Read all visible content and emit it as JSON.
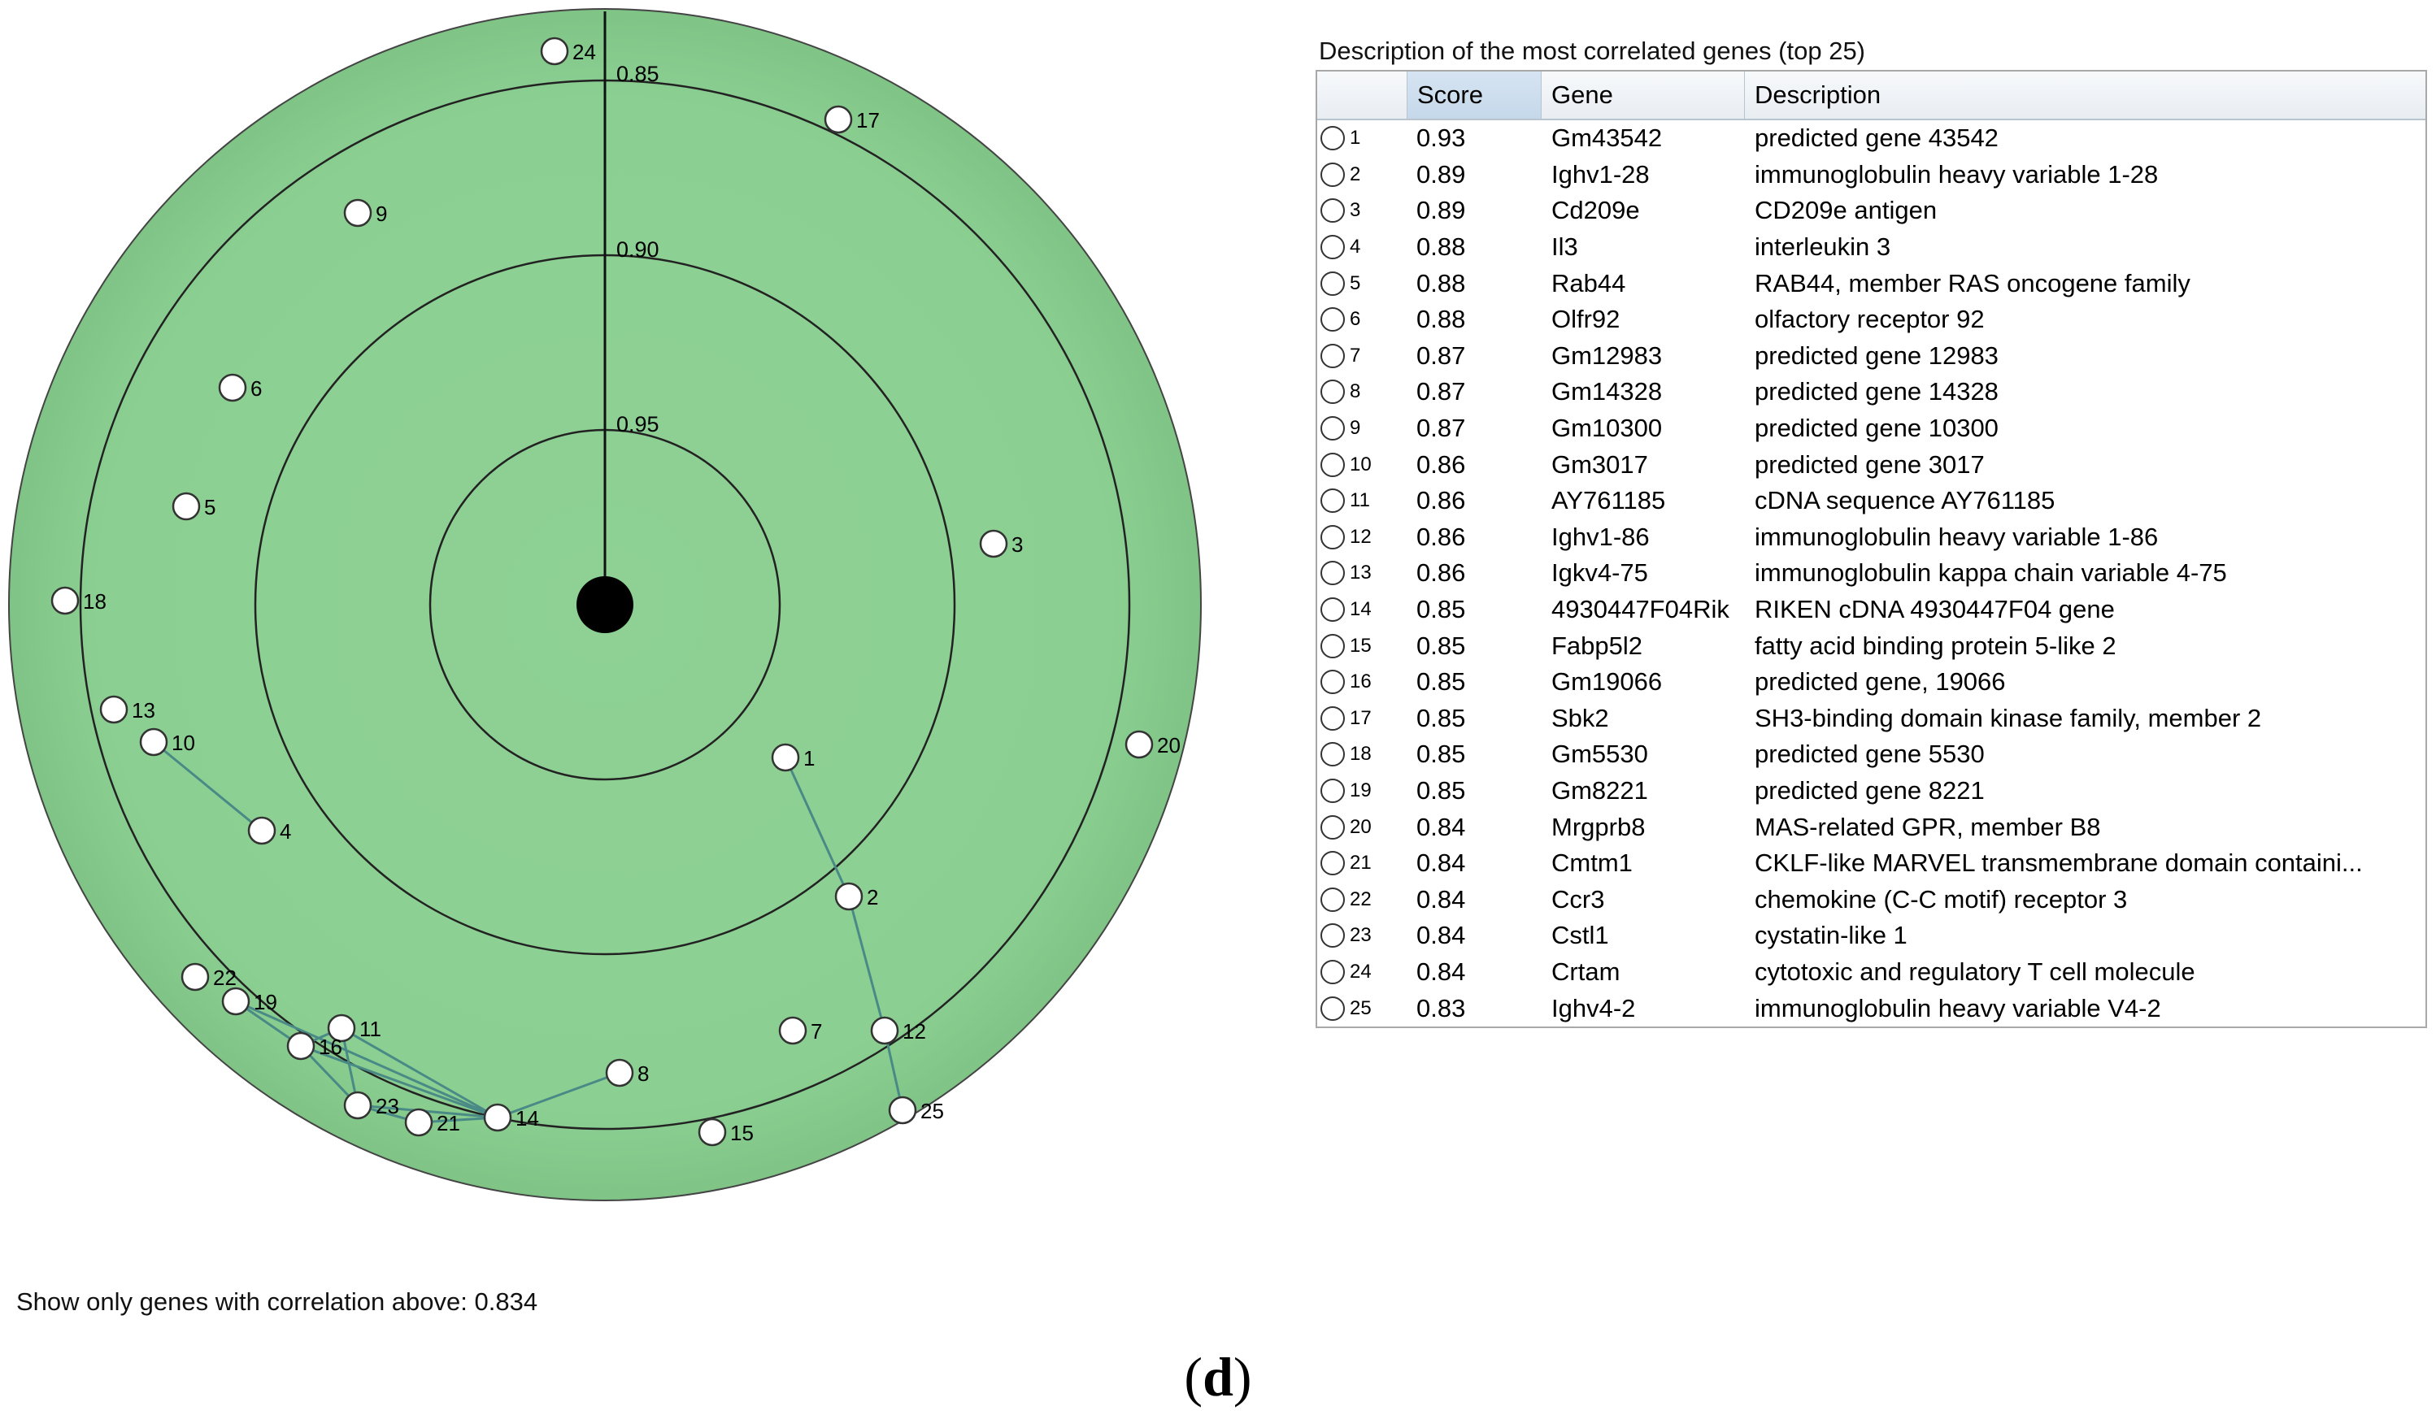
{
  "panel": {
    "title": "Description of the most correlated genes (top 25)",
    "columns": [
      "",
      "Score",
      "Gene",
      "Description"
    ]
  },
  "genes": [
    {
      "rank": "1",
      "score": "0.93",
      "gene": "Gm43542",
      "description": "predicted gene 43542"
    },
    {
      "rank": "2",
      "score": "0.89",
      "gene": "Ighv1-28",
      "description": "immunoglobulin heavy variable 1-28"
    },
    {
      "rank": "3",
      "score": "0.89",
      "gene": "Cd209e",
      "description": "CD209e antigen"
    },
    {
      "rank": "4",
      "score": "0.88",
      "gene": "Il3",
      "description": "interleukin 3"
    },
    {
      "rank": "5",
      "score": "0.88",
      "gene": "Rab44",
      "description": "RAB44, member RAS oncogene family"
    },
    {
      "rank": "6",
      "score": "0.88",
      "gene": "Olfr92",
      "description": "olfactory receptor 92"
    },
    {
      "rank": "7",
      "score": "0.87",
      "gene": "Gm12983",
      "description": "predicted gene 12983"
    },
    {
      "rank": "8",
      "score": "0.87",
      "gene": "Gm14328",
      "description": "predicted gene 14328"
    },
    {
      "rank": "9",
      "score": "0.87",
      "gene": "Gm10300",
      "description": "predicted gene 10300"
    },
    {
      "rank": "10",
      "score": "0.86",
      "gene": "Gm3017",
      "description": "predicted gene 3017"
    },
    {
      "rank": "11",
      "score": "0.86",
      "gene": "AY761185",
      "description": "cDNA sequence AY761185"
    },
    {
      "rank": "12",
      "score": "0.86",
      "gene": "Ighv1-86",
      "description": "immunoglobulin heavy variable 1-86"
    },
    {
      "rank": "13",
      "score": "0.86",
      "gene": "Igkv4-75",
      "description": "immunoglobulin kappa chain variable 4-75"
    },
    {
      "rank": "14",
      "score": "0.85",
      "gene": "4930447F04Rik",
      "description": "RIKEN cDNA 4930447F04 gene"
    },
    {
      "rank": "15",
      "score": "0.85",
      "gene": "Fabp5l2",
      "description": "fatty acid binding protein 5-like 2"
    },
    {
      "rank": "16",
      "score": "0.85",
      "gene": "Gm19066",
      "description": "predicted gene, 19066"
    },
    {
      "rank": "17",
      "score": "0.85",
      "gene": "Sbk2",
      "description": "SH3-binding domain kinase family, member 2"
    },
    {
      "rank": "18",
      "score": "0.85",
      "gene": "Gm5530",
      "description": "predicted gene 5530"
    },
    {
      "rank": "19",
      "score": "0.85",
      "gene": "Gm8221",
      "description": "predicted gene 8221"
    },
    {
      "rank": "20",
      "score": "0.84",
      "gene": "Mrgprb8",
      "description": "MAS-related GPR, member B8"
    },
    {
      "rank": "21",
      "score": "0.84",
      "gene": "Cmtm1",
      "description": "CKLF-like MARVEL transmembrane domain containi..."
    },
    {
      "rank": "22",
      "score": "0.84",
      "gene": "Ccr3",
      "description": "chemokine (C-C motif) receptor 3"
    },
    {
      "rank": "23",
      "score": "0.84",
      "gene": "Cstl1",
      "description": "cystatin-like 1"
    },
    {
      "rank": "24",
      "score": "0.84",
      "gene": "Crtam",
      "description": "cytotoxic and regulatory T cell molecule"
    },
    {
      "rank": "25",
      "score": "0.83",
      "gene": "Ighv4-2",
      "description": "immunoglobulin heavy variable V4-2"
    }
  ],
  "radar": {
    "ring_labels": [
      "0.85",
      "0.90",
      "0.95"
    ],
    "node_labels": [
      "1",
      "2",
      "3",
      "4",
      "5",
      "6",
      "7",
      "8",
      "9",
      "10",
      "11",
      "12",
      "13",
      "14",
      "15",
      "16",
      "17",
      "18",
      "19",
      "20",
      "21",
      "22",
      "23",
      "24",
      "25"
    ],
    "colors": {
      "fill": "#8fd195",
      "stroke": "#222222",
      "link": "#4a8a86"
    }
  },
  "threshold": {
    "label": "Show only genes with correlation above: 0.834"
  },
  "caption": {
    "open": "(",
    "letter": "d",
    "close": ")"
  }
}
